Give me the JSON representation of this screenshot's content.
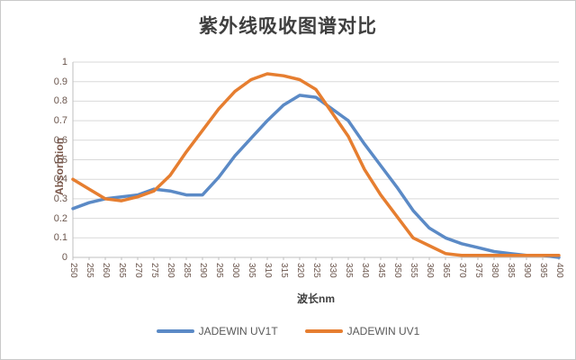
{
  "window": {
    "background": "#ffffff",
    "frame_border_color": "#c9c9c9"
  },
  "chart_data": {
    "type": "line",
    "title": "紫外线吸收图谱对比",
    "xlabel": "波长nm",
    "ylabel": "Absorbtion",
    "x": [
      250,
      255,
      260,
      265,
      270,
      275,
      280,
      285,
      290,
      295,
      300,
      305,
      310,
      315,
      320,
      325,
      330,
      335,
      340,
      345,
      350,
      355,
      360,
      365,
      370,
      375,
      380,
      385,
      390,
      395,
      400
    ],
    "ylim": [
      0,
      1
    ],
    "y_tick_step": 0.1,
    "y_tick_labels": [
      "1",
      "0.9",
      "0.8",
      "0.7",
      "0.6",
      "0.5",
      "0.4",
      "0.3",
      "0.2",
      "0.1",
      "0"
    ],
    "grid": true,
    "legend_position": "bottom",
    "series": [
      {
        "name": "JADEWIN UV1T",
        "color": "#5B8AC6",
        "values": [
          0.25,
          0.28,
          0.3,
          0.31,
          0.32,
          0.35,
          0.34,
          0.32,
          0.32,
          0.41,
          0.52,
          0.61,
          0.7,
          0.78,
          0.83,
          0.82,
          0.76,
          0.7,
          0.58,
          0.47,
          0.36,
          0.24,
          0.15,
          0.1,
          0.07,
          0.05,
          0.03,
          0.02,
          0.01,
          0.01,
          0.0
        ]
      },
      {
        "name": "JADEWIN UV1",
        "color": "#E67E30",
        "values": [
          0.4,
          0.35,
          0.3,
          0.29,
          0.31,
          0.34,
          0.42,
          0.54,
          0.65,
          0.76,
          0.85,
          0.91,
          0.94,
          0.93,
          0.91,
          0.86,
          0.74,
          0.62,
          0.45,
          0.32,
          0.21,
          0.1,
          0.06,
          0.02,
          0.01,
          0.01,
          0.01,
          0.01,
          0.01,
          0.01,
          0.01
        ]
      }
    ]
  },
  "styles": {
    "title_color": "#3f3f3f",
    "axis_title_color": "#3f3f3f",
    "y_axis_title_color": "#7a574a",
    "tick_label_color": "#6b564d",
    "legend_label_color": "#595959",
    "gridline_color": "#d9d9d9",
    "axis_line_color": "#bfbfbf"
  }
}
